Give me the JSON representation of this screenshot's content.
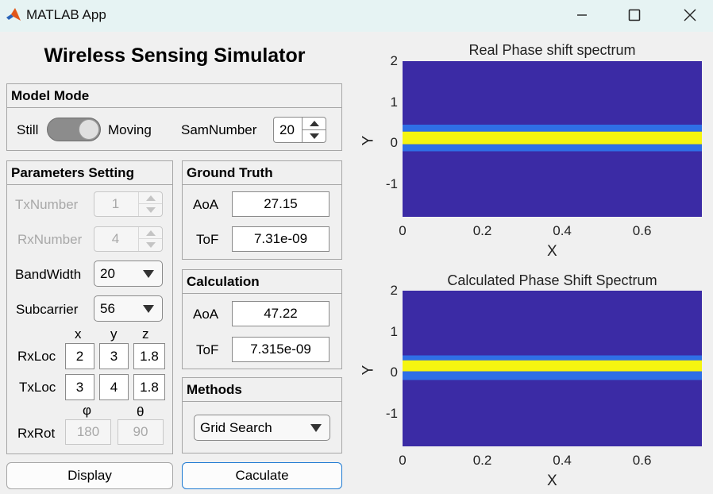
{
  "window": {
    "title": "MATLAB App",
    "icon": "matlab-logo-icon",
    "controls": [
      "minimize-icon",
      "maximize-icon",
      "close-icon"
    ]
  },
  "app_title": "Wireless Sensing Simulator",
  "model_mode": {
    "title": "Model Mode",
    "switch_off_label": "Still",
    "switch_on_label": "Moving",
    "switch_state": "Moving",
    "sam_label": "SamNumber",
    "sam_value": "20"
  },
  "params": {
    "title": "Parameters Setting",
    "tx_label": "TxNumber",
    "tx_value": "1",
    "rx_label": "RxNumber",
    "rx_value": "4",
    "bw_label": "BandWidth",
    "bw_value": "20",
    "sub_label": "Subcarrier",
    "sub_value": "56",
    "x_head": "x",
    "y_head": "y",
    "z_head": "z",
    "rxloc_label": "RxLoc",
    "rxloc": [
      "2",
      "3",
      "1.8"
    ],
    "txloc_label": "TxLoc",
    "txloc": [
      "3",
      "4",
      "1.8"
    ],
    "phi_head": "φ",
    "theta_head": "θ",
    "rxrot_label": "RxRot",
    "rxrot": [
      "180",
      "90"
    ]
  },
  "ground_truth": {
    "title": "Ground Truth",
    "aoa_label": "AoA",
    "aoa_value": "27.15",
    "tof_label": "ToF",
    "tof_value": "7.31e-09"
  },
  "calculation": {
    "title": "Calculation",
    "aoa_label": "AoA",
    "aoa_value": "47.22",
    "tof_label": "ToF",
    "tof_value": "7.315e-09"
  },
  "methods": {
    "title": "Methods",
    "value": "Grid Search"
  },
  "buttons": {
    "display": "Display",
    "calculate": "Caculate"
  },
  "colors": {
    "background": "#3b2ba5",
    "band_edge": "#2f6fe6",
    "band_core": "#f5f510"
  },
  "chart_data": [
    {
      "type": "heatmap",
      "title": "Real Phase shift spectrum",
      "xlabel": "X",
      "ylabel": "Y",
      "xlim": [
        0,
        0.75
      ],
      "ylim": [
        -1.8,
        2
      ],
      "xticks": [
        "0",
        "0.2",
        "0.4",
        "0.6"
      ],
      "yticks": [
        "2",
        "1",
        "0",
        "-1"
      ],
      "bands": [
        {
          "y_from": 0.28,
          "y_to": 0.45,
          "level": "mid"
        },
        {
          "y_from": -0.03,
          "y_to": 0.28,
          "level": "high"
        },
        {
          "y_from": -0.2,
          "y_to": -0.03,
          "level": "mid"
        }
      ]
    },
    {
      "type": "heatmap",
      "title": "Calculated Phase Shift Spectrum",
      "xlabel": "X",
      "ylabel": "Y",
      "xlim": [
        0,
        0.75
      ],
      "ylim": [
        -1.8,
        2
      ],
      "xticks": [
        "0",
        "0.2",
        "0.4",
        "0.6"
      ],
      "yticks": [
        "2",
        "1",
        "0",
        "-1"
      ],
      "bands": [
        {
          "y_from": 0.3,
          "y_to": 0.42,
          "level": "mid"
        },
        {
          "y_from": 0.03,
          "y_to": 0.3,
          "level": "high"
        },
        {
          "y_from": -0.18,
          "y_to": 0.03,
          "level": "mid"
        }
      ]
    }
  ]
}
